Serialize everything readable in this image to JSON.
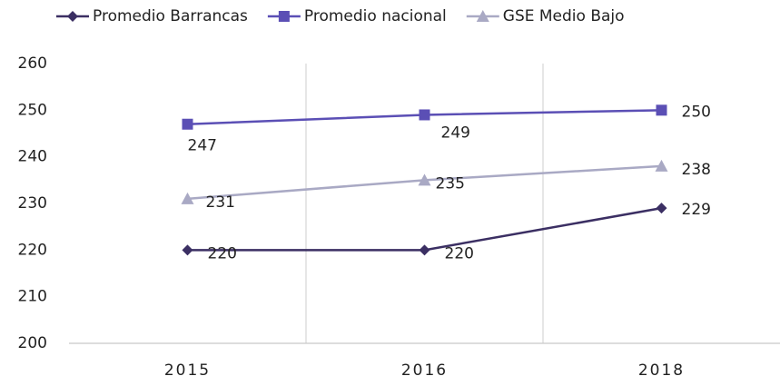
{
  "chart_data": {
    "type": "line",
    "categories": [
      "2015",
      "2016",
      "2018"
    ],
    "series": [
      {
        "name": "Promedio Barrancas",
        "color": "#3b2f63",
        "marker": "diamond",
        "values": [
          220,
          220,
          229
        ]
      },
      {
        "name": "Promedio nacional",
        "color": "#5b4fb5",
        "marker": "square",
        "values": [
          247,
          249,
          250
        ]
      },
      {
        "name": "GSE Medio Bajo",
        "color": "#a9a9c4",
        "marker": "triangle",
        "values": [
          231,
          235,
          238
        ]
      }
    ],
    "ylim": [
      200,
      260
    ],
    "yticks": [
      200,
      210,
      220,
      230,
      240,
      250,
      260
    ],
    "legend": "top"
  }
}
